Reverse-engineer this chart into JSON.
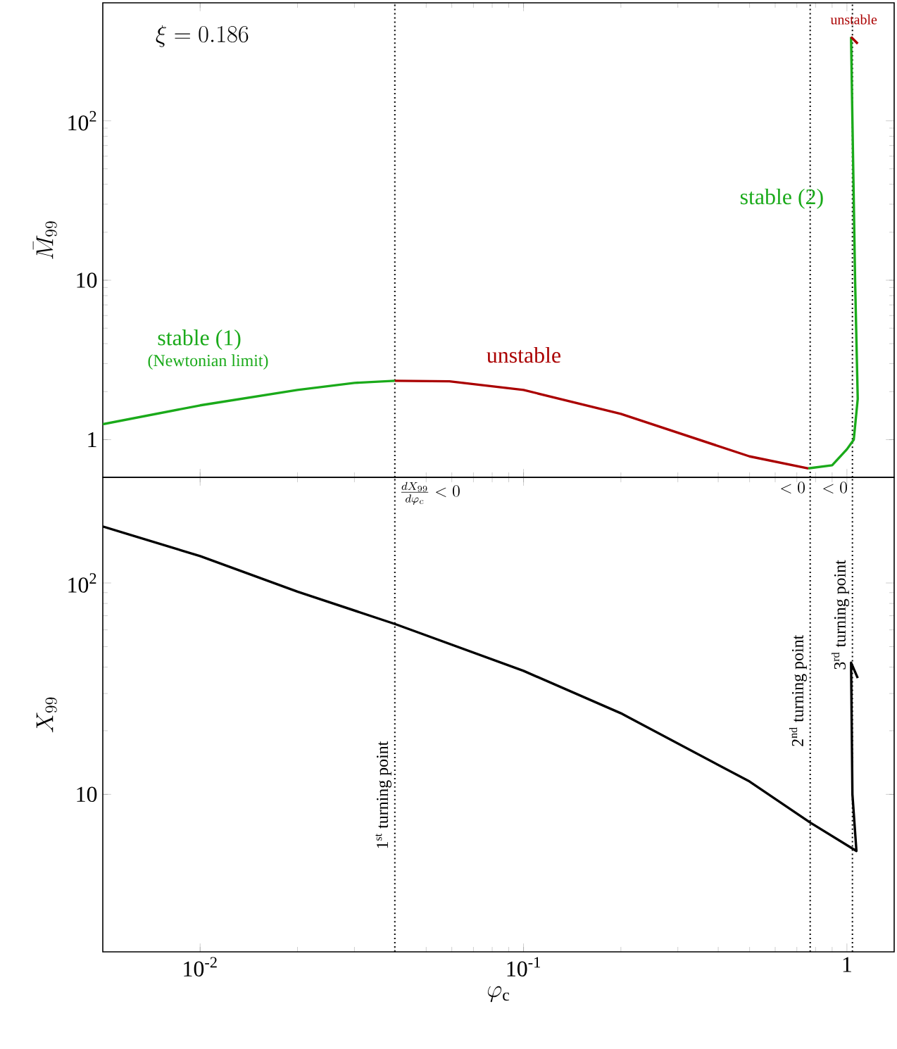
{
  "chart_data": [
    {
      "type": "line",
      "ylabel": "\\bar{M}_{99}",
      "log": "xy",
      "tick_labels": "y",
      "xlim": [
        0.005,
        1.4
      ],
      "xticks": [
        {
          "value": 0.01,
          "label": null
        },
        {
          "value": 0.1,
          "label": null
        },
        {
          "value": 1,
          "label": null
        }
      ],
      "ylim": [
        0.58,
        550
      ],
      "yticks": [
        1,
        10,
        {
          "value": 100,
          "label": "10$^{2}$"
        }
      ],
      "series": [
        {
          "name": "stable (1)",
          "color": "#1aaa1a",
          "x": [
            0.005,
            0.01,
            0.02,
            0.03,
            0.04
          ],
          "values": [
            1.25,
            1.64,
            2.05,
            2.27,
            2.34
          ]
        },
        {
          "name": "unstable",
          "color": "#aa0000",
          "x": [
            0.04,
            0.059,
            0.1,
            0.2,
            0.5,
            0.76
          ],
          "values": [
            2.34,
            2.32,
            2.05,
            1.45,
            0.785,
            0.66
          ]
        },
        {
          "name": "stable (2)",
          "color": "#1aaa1a",
          "x": [
            0.76,
            0.9,
            1.0,
            1.05,
            1.08,
            1.06,
            1.04,
            1.03
          ],
          "values": [
            0.66,
            0.69,
            0.87,
            1.0,
            1.8,
            10,
            100,
            336
          ]
        },
        {
          "name": "unstable",
          "color": "#aa0000",
          "x": [
            1.03,
            1.08
          ],
          "values": [
            336,
            305
          ]
        }
      ],
      "ref_lines": [
        {
          "axis": "x",
          "value": 0.04,
          "line_style": "dotted"
        },
        {
          "axis": "x",
          "value": 0.77,
          "line_style": "dotted"
        },
        {
          "axis": "x",
          "value": 1.04,
          "line_style": "dotted"
        }
      ],
      "annotations": [
        "\\xi = 0.186",
        "(Newtonian limit)"
      ]
    },
    {
      "type": "line",
      "xlabel": "\\varphi_{\\mathrm{c}}",
      "ylabel": "X_{99}",
      "log": "xy",
      "xlim": [
        0.005,
        1.4
      ],
      "xticks": [
        {
          "value": 0.01,
          "label": "10$^{-2}$"
        },
        {
          "value": 0.1,
          "label": "10$^{-1}$"
        },
        1
      ],
      "ylim": [
        1.8,
        316
      ],
      "yticks": [
        10,
        {
          "value": 100,
          "label": "10$^{2}$"
        }
      ],
      "series": [
        {
          "color": "#000000",
          "x": [
            0.005,
            0.01,
            0.02,
            0.04,
            0.1,
            0.2,
            0.5,
            0.77,
            1.07,
            1.04,
            1.03,
            1.08
          ],
          "values": [
            185,
            134,
            91,
            64,
            38.4,
            24.2,
            11.5,
            7.36,
            5.4,
            10,
            42,
            35.5
          ]
        }
      ],
      "ref_lines": [
        {
          "axis": "x",
          "value": 0.04,
          "line_style": "dotted",
          "label": "1$^{st}$ turning point"
        },
        {
          "axis": "x",
          "value": 0.77,
          "line_style": "dotted",
          "label": "2$^{nd}$ turning point"
        },
        {
          "axis": "x",
          "value": 1.04,
          "line_style": "dotted",
          "label": "3$^{rd}$ turning point"
        }
      ],
      "annotations": [
        "\\frac{dX_{99}}{d\\varphi_c} < 0",
        "< 0",
        "< 0"
      ]
    }
  ]
}
